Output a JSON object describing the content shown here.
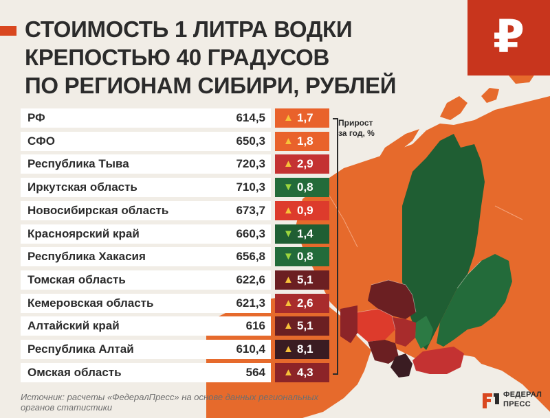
{
  "title_lines": [
    "СТОИМОСТЬ 1 ЛИТРА ВОДКИ",
    "КРЕПОСТЬЮ 40 ГРАДУСОВ",
    "ПО РЕГИОНАМ СИБИРИ, РУБЛЕЙ"
  ],
  "ruble_icon": "ruble-sign-icon",
  "ruble_glyph": "₽",
  "growth_label_lines": [
    "Прирост",
    "за год, %"
  ],
  "chart_data": {
    "type": "table",
    "title": "СТОИМОСТЬ 1 ЛИТРА ВОДКИ КРЕПОСТЬЮ 40 ГРАДУСОВ ПО РЕГИОНАМ СИБИРИ, РУБЛЕЙ",
    "columns": [
      "",
      "",
      "Прирост за год, %"
    ],
    "rows": [
      {
        "region": "РФ",
        "price": "614,5",
        "growth": "1,7",
        "direction": "up",
        "color": "#e9622b"
      },
      {
        "region": "СФО",
        "price": "650,3",
        "growth": "1,8",
        "direction": "up",
        "color": "#e9622b"
      },
      {
        "region": "Республика Тыва",
        "price": "720,3",
        "growth": "2,9",
        "direction": "up",
        "color": "#c43232"
      },
      {
        "region": "Иркутская область",
        "price": "710,3",
        "growth": "0,8",
        "direction": "down",
        "color": "#236b3a"
      },
      {
        "region": "Новосибирская область",
        "price": "673,7",
        "growth": "0,9",
        "direction": "up",
        "color": "#dd3b2c"
      },
      {
        "region": "Красноярский край",
        "price": "660,3",
        "growth": "1,4",
        "direction": "down",
        "color": "#1f5e33"
      },
      {
        "region": "Республика Хакасия",
        "price": "656,8",
        "growth": "0,8",
        "direction": "down",
        "color": "#236b3a"
      },
      {
        "region": "Томская область",
        "price": "622,6",
        "growth": "5,1",
        "direction": "up",
        "color": "#6b1f22"
      },
      {
        "region": "Кемеровская область",
        "price": "621,3",
        "growth": "2,6",
        "direction": "up",
        "color": "#a82c2c"
      },
      {
        "region": "Алтайский край",
        "price": "616",
        "growth": "5,1",
        "direction": "up",
        "color": "#6b1f22"
      },
      {
        "region": "Республика Алтай",
        "price": "610,4",
        "growth": "8,1",
        "direction": "up",
        "color": "#3a1c22"
      },
      {
        "region": "Омская область",
        "price": "564",
        "growth": "4,3",
        "direction": "up",
        "color": "#8c2428"
      }
    ]
  },
  "source_lines": [
    "Источник: расчеты «ФедералПресс» на основе данных региональных",
    "органов статистики"
  ],
  "logo": {
    "line1": "ФЕДЕРАЛ",
    "line2": "ПРЕСС"
  },
  "colors": {
    "background": "#f1ede6",
    "russia_fill": "#e66a2c",
    "accent": "#d9471f",
    "badge": "#c8351d",
    "krasnoyarsk_green": "#1f5e33",
    "irkutsk_green": "#236b3a"
  }
}
